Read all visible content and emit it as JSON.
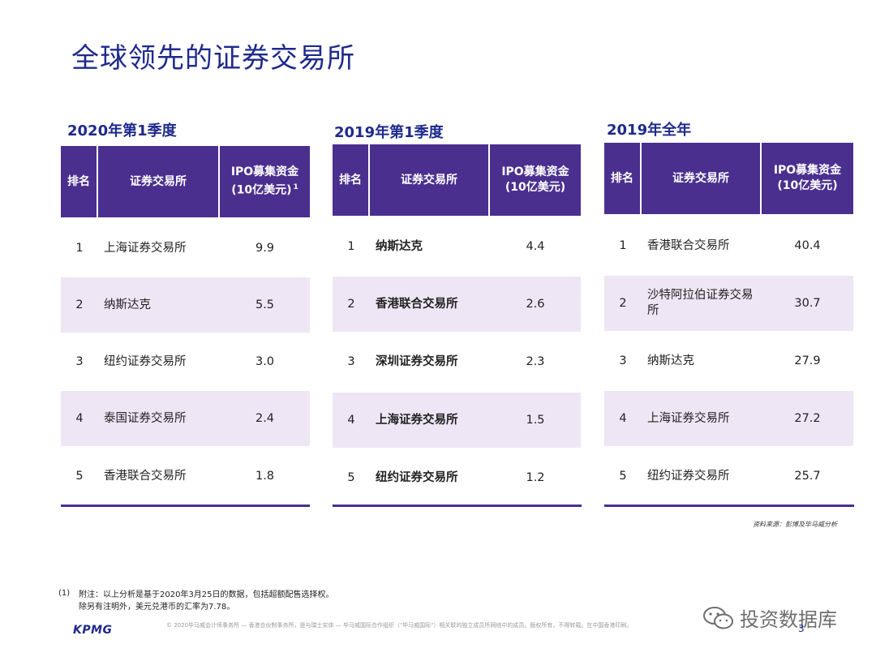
{
  "title": "全球领先的证券交易所",
  "tables": [
    {
      "heading": "2020年第1季度",
      "col_rank": "排名",
      "col_exchange": "证券交易所",
      "col_ipo_line1": "IPO募集资金",
      "col_ipo_line2": "(10亿美元)",
      "col_ipo_sup": "1",
      "rows": [
        {
          "rank": "1",
          "name": "上海证券交易所",
          "value": "9.9"
        },
        {
          "rank": "2",
          "name": "纳斯达克",
          "value": "5.5"
        },
        {
          "rank": "3",
          "name": "纽约证券交易所",
          "value": "3.0"
        },
        {
          "rank": "4",
          "name": "泰国证券交易所",
          "value": "2.4"
        },
        {
          "rank": "5",
          "name": "香港联合交易所",
          "value": "1.8"
        }
      ]
    },
    {
      "heading": "2019年第1季度",
      "col_rank": "排名",
      "col_exchange": "证券交易所",
      "col_ipo_line1": "IPO募集资金",
      "col_ipo_line2": "(10亿美元)",
      "col_ipo_sup": "",
      "rows": [
        {
          "rank": "1",
          "name": "纳斯达克",
          "value": "4.4"
        },
        {
          "rank": "2",
          "name": "香港联合交易所",
          "value": "2.6"
        },
        {
          "rank": "3",
          "name": "深圳证券交易所",
          "value": "2.3"
        },
        {
          "rank": "4",
          "name": "上海证券交易所",
          "value": "1.5"
        },
        {
          "rank": "5",
          "name": "纽约证券交易所",
          "value": "1.2"
        }
      ]
    },
    {
      "heading": "2019年全年",
      "col_rank": "排名",
      "col_exchange": "证券交易所",
      "col_ipo_line1": "IPO募集资金",
      "col_ipo_line2": "(10亿美元)",
      "col_ipo_sup": "",
      "rows": [
        {
          "rank": "1",
          "name": "香港联合交易所",
          "value": "40.4"
        },
        {
          "rank": "2",
          "name": "沙特阿拉伯证券交易所",
          "value": "30.7"
        },
        {
          "rank": "3",
          "name": "纳斯达克",
          "value": "27.9"
        },
        {
          "rank": "4",
          "name": "上海证券交易所",
          "value": "27.2"
        },
        {
          "rank": "5",
          "name": "纽约证券交易所",
          "value": "25.7"
        }
      ]
    }
  ],
  "source": "资料来源：彭博及毕马威分析",
  "footnote": {
    "number": "(1)",
    "line1": "附注：以上分析是基于2020年3月25日的数据，包括超额配售选择权。",
    "line2": "除另有注明外，美元兑港币的汇率为7.78。"
  },
  "logo": "KPMG",
  "copyright": "© 2020毕马威会计师事务所 — 香港合伙制事务所，是与瑞士实体 — 毕马威国际合作组织（\"毕马威国际\"）相关联的独立成员所网络中的成员。版权所有，不得转载。在中国香港印刷。",
  "watermark": "投资数据库",
  "page_number": "3",
  "colors": {
    "header_bg": "#4a2f8f",
    "row_shade": "#efe6f5",
    "title": "#1e2a8c"
  }
}
